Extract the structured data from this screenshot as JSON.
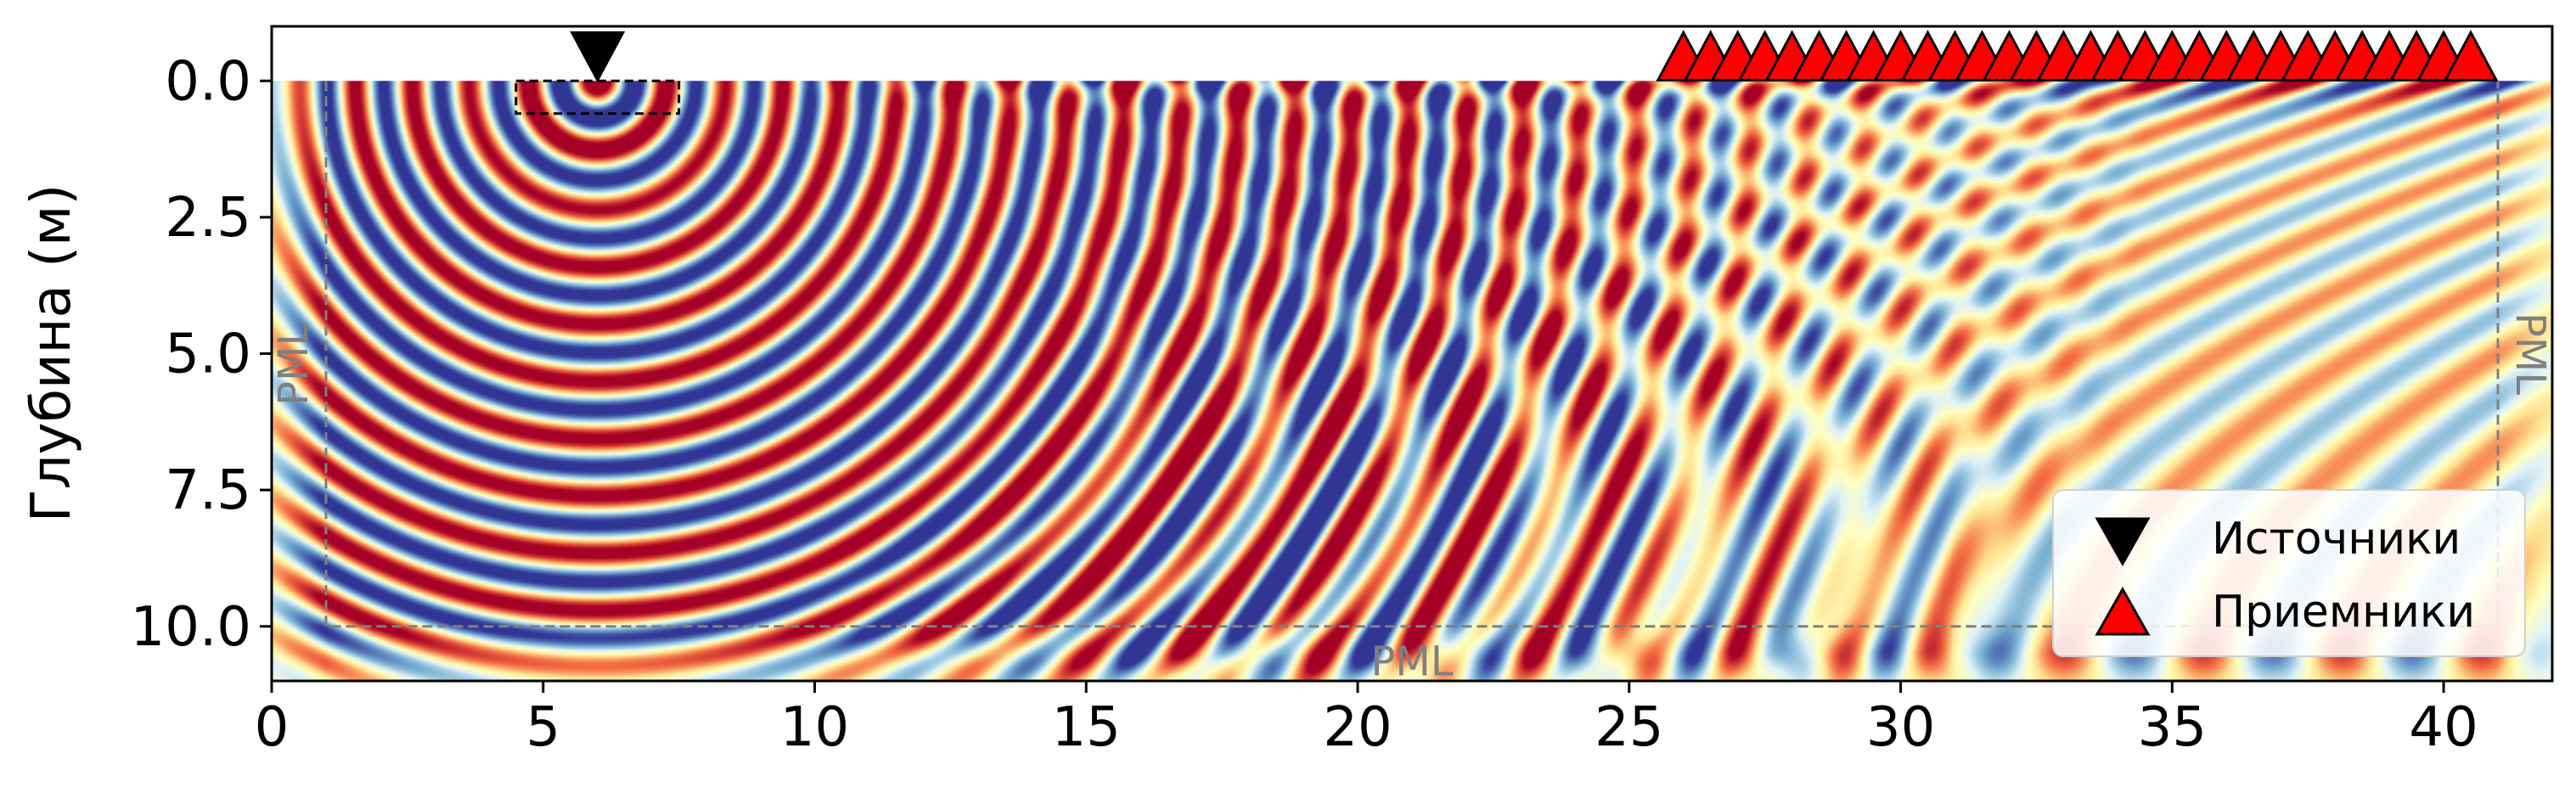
{
  "chart_data": {
    "type": "heatmap",
    "title": "",
    "xlabel": "",
    "ylabel": "Глубина (м)",
    "xlim": [
      0,
      42
    ],
    "ylim": [
      11,
      -1
    ],
    "xticks": [
      0,
      5,
      10,
      15,
      20,
      25,
      30,
      35,
      40
    ],
    "xtick_labels": [
      "0",
      "5",
      "10",
      "15",
      "20",
      "25",
      "30",
      "35",
      "40"
    ],
    "yticks": [
      0,
      2.5,
      5,
      7.5,
      10
    ],
    "ytick_labels": [
      "0.0",
      "2.5",
      "5.0",
      "7.5",
      "10.0"
    ],
    "grid": false,
    "colormap": "RdYlBu_r",
    "colors": {
      "negative": "#313695",
      "neutral": "#ffffbf",
      "positive": "#a50026",
      "pml_border": "#808080",
      "source_marker": "#000000",
      "receiver_marker": "#ff0000"
    },
    "pml_boundary": {
      "x": [
        1,
        41
      ],
      "y_bottom": 10
    },
    "pml_labels": [
      "PML",
      "PML",
      "PML"
    ],
    "source_box": {
      "x": [
        4.5,
        7.5
      ],
      "y": [
        0,
        0.6
      ]
    },
    "sources": [
      {
        "x": 6.0,
        "y": -0.45
      }
    ],
    "receivers": {
      "x": [
        26.0,
        26.5,
        27.0,
        27.5,
        28.0,
        28.5,
        29.0,
        29.5,
        30.0,
        30.5,
        31.0,
        31.5,
        32.0,
        32.5,
        33.0,
        33.5,
        34.0,
        34.5,
        35.0,
        35.5,
        36.0,
        36.5,
        37.0,
        37.5,
        38.0,
        38.5,
        39.0,
        39.5,
        40.0,
        40.5
      ],
      "y": -0.45
    },
    "legend": {
      "position": "lower-right",
      "entries": [
        "Источники",
        "Приемники"
      ]
    }
  }
}
